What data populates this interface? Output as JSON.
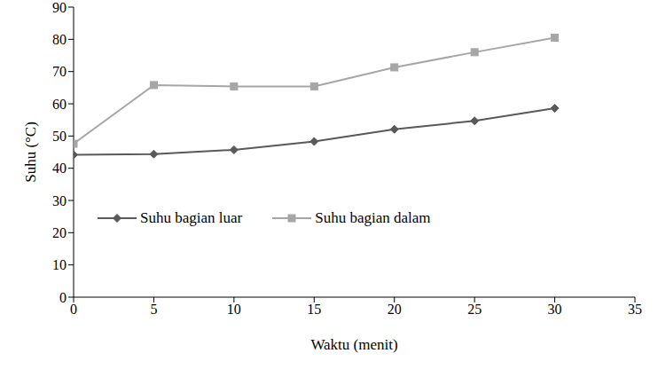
{
  "chart_data": {
    "type": "line",
    "x_label": "Waktu (menit)",
    "y_label": "Suhu (°C)",
    "x": [
      0,
      5,
      10,
      15,
      20,
      25,
      30
    ],
    "series": [
      {
        "name": "Suhu bagian luar",
        "color": "#595959",
        "marker": "diamond",
        "values": [
          44.2,
          44.4,
          45.7,
          48.3,
          52.1,
          54.7,
          58.6
        ]
      },
      {
        "name": "Suhu bagian dalam",
        "color": "#a6a6a6",
        "marker": "square",
        "values": [
          47.6,
          65.8,
          65.4,
          65.4,
          71.3,
          76.0,
          80.5
        ]
      }
    ],
    "xlim": [
      0,
      35
    ],
    "xticks": [
      0,
      5,
      10,
      15,
      20,
      25,
      30,
      35
    ],
    "ylim": [
      0,
      90
    ],
    "yticks": [
      0,
      10,
      20,
      30,
      40,
      50,
      60,
      70,
      80,
      90
    ],
    "grid": false,
    "legend": "left"
  }
}
